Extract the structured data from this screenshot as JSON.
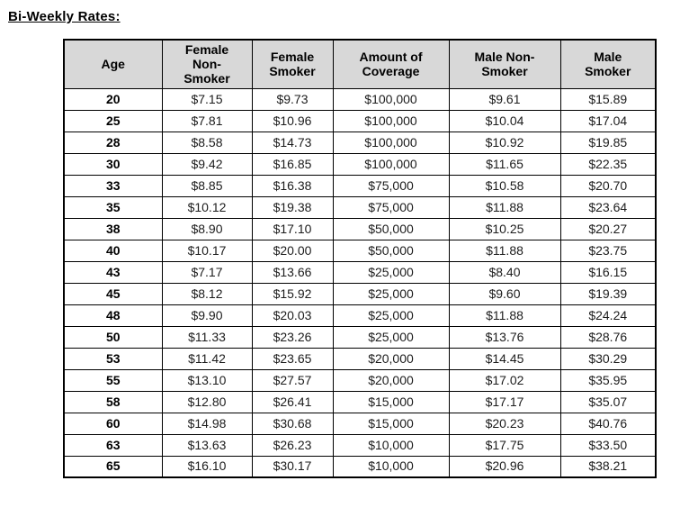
{
  "page": {
    "title": "Bi-Weekly Rates:"
  },
  "colors": {
    "header_bg": "#d8d8d8",
    "border": "#000000",
    "text": "#1c1c1c",
    "background": "#ffffff"
  },
  "table": {
    "columns": [
      "Age",
      "Female\nNon-\nSmoker",
      "Female\nSmoker",
      "Amount of\nCoverage",
      "Male Non-\nSmoker",
      "Male\nSmoker"
    ],
    "rows": [
      [
        "20",
        "$7.15",
        "$9.73",
        "$100,000",
        "$9.61",
        "$15.89"
      ],
      [
        "25",
        "$7.81",
        "$10.96",
        "$100,000",
        "$10.04",
        "$17.04"
      ],
      [
        "28",
        "$8.58",
        "$14.73",
        "$100,000",
        "$10.92",
        "$19.85"
      ],
      [
        "30",
        "$9.42",
        "$16.85",
        "$100,000",
        "$11.65",
        "$22.35"
      ],
      [
        "33",
        "$8.85",
        "$16.38",
        "$75,000",
        "$10.58",
        "$20.70"
      ],
      [
        "35",
        "$10.12",
        "$19.38",
        "$75,000",
        "$11.88",
        "$23.64"
      ],
      [
        "38",
        "$8.90",
        "$17.10",
        "$50,000",
        "$10.25",
        "$20.27"
      ],
      [
        "40",
        "$10.17",
        "$20.00",
        "$50,000",
        "$11.88",
        "$23.75"
      ],
      [
        "43",
        "$7.17",
        "$13.66",
        "$25,000",
        "$8.40",
        "$16.15"
      ],
      [
        "45",
        "$8.12",
        "$15.92",
        "$25,000",
        "$9.60",
        "$19.39"
      ],
      [
        "48",
        "$9.90",
        "$20.03",
        "$25,000",
        "$11.88",
        "$24.24"
      ],
      [
        "50",
        "$11.33",
        "$23.26",
        "$25,000",
        "$13.76",
        "$28.76"
      ],
      [
        "53",
        "$11.42",
        "$23.65",
        "$20,000",
        "$14.45",
        "$30.29"
      ],
      [
        "55",
        "$13.10",
        "$27.57",
        "$20,000",
        "$17.02",
        "$35.95"
      ],
      [
        "58",
        "$12.80",
        "$26.41",
        "$15,000",
        "$17.17",
        "$35.07"
      ],
      [
        "60",
        "$14.98",
        "$30.68",
        "$15,000",
        "$20.23",
        "$40.76"
      ],
      [
        "63",
        "$13.63",
        "$26.23",
        "$10,000",
        "$17.75",
        "$33.50"
      ],
      [
        "65",
        "$16.10",
        "$30.17",
        "$10,000",
        "$20.96",
        "$38.21"
      ]
    ]
  }
}
